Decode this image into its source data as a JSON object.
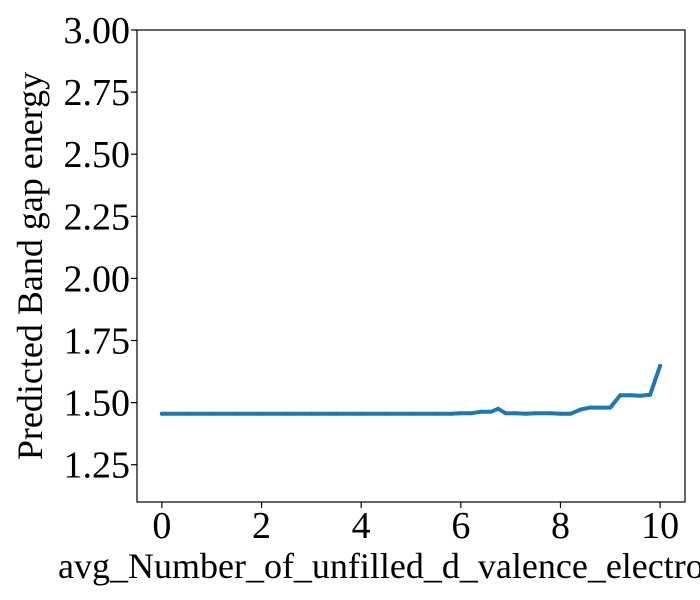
{
  "chart_data": {
    "type": "line",
    "title": "",
    "xlabel": "avg_Number_of_unfilled_d_valence_electrons",
    "ylabel": "Predicted Band gap energy",
    "xlim": [
      -0.5,
      10.5
    ],
    "ylim": [
      1.1,
      3.0
    ],
    "xticks": [
      0,
      2,
      4,
      6,
      8,
      10
    ],
    "xtick_labels": [
      "0",
      "2",
      "4",
      "6",
      "8",
      "10"
    ],
    "yticks": [
      1.25,
      1.5,
      1.75,
      2.0,
      2.25,
      2.5,
      2.75,
      3.0
    ],
    "ytick_labels": [
      "1.25",
      "1.50",
      "1.75",
      "2.00",
      "2.25",
      "2.50",
      "2.75",
      "3.00"
    ],
    "grid": false,
    "legend": "none",
    "series": [
      {
        "color": "#1f77b4",
        "x": [
          0,
          0.5,
          1,
          1.5,
          2,
          2.5,
          3,
          3.5,
          4,
          4.5,
          5,
          5.5,
          5.8,
          6.0,
          6.2,
          6.4,
          6.6,
          6.75,
          6.9,
          7.1,
          7.3,
          7.5,
          7.8,
          8.0,
          8.2,
          8.4,
          8.6,
          8.8,
          9.0,
          9.2,
          9.4,
          9.6,
          9.8,
          10.0
        ],
        "y": [
          1.455,
          1.455,
          1.455,
          1.455,
          1.455,
          1.455,
          1.455,
          1.455,
          1.455,
          1.455,
          1.455,
          1.455,
          1.455,
          1.457,
          1.457,
          1.463,
          1.463,
          1.475,
          1.457,
          1.457,
          1.455,
          1.457,
          1.457,
          1.455,
          1.455,
          1.472,
          1.48,
          1.48,
          1.48,
          1.53,
          1.53,
          1.528,
          1.532,
          1.648
        ]
      }
    ]
  }
}
